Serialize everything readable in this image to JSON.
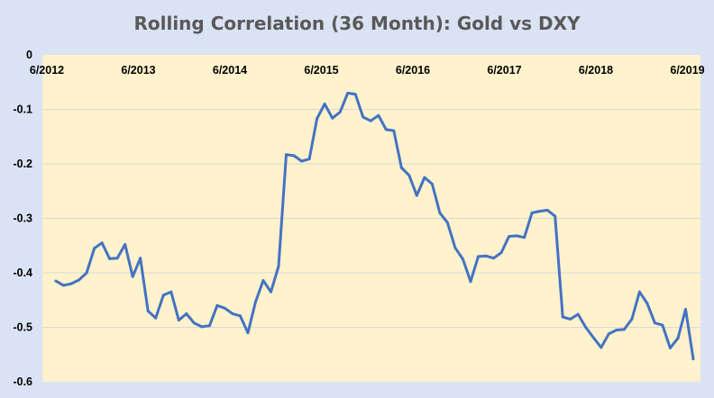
{
  "chart_data": {
    "type": "line",
    "title": "Rolling Correlation (36 Month): Gold vs DXY",
    "xlabel": "",
    "ylabel": "",
    "ylim": [
      -0.6,
      0
    ],
    "yticks": [
      "0",
      "-0.1",
      "-0.2",
      "-0.3",
      "-0.4",
      "-0.5",
      "-0.6"
    ],
    "xticks": [
      "6/2012",
      "6/2013",
      "6/2014",
      "6/2015",
      "6/2016",
      "6/2017",
      "6/2018",
      "6/2019"
    ],
    "grid": true,
    "legend": "none",
    "colors": {
      "line": "#4472c4",
      "plot_bg": "#fff2cc",
      "page_bg": "#dae3f3",
      "grid": "#d9d9d9"
    },
    "series": [
      {
        "values": [
          -0.415,
          -0.423,
          -0.42,
          -0.413,
          -0.4,
          -0.355,
          -0.345,
          -0.374,
          -0.373,
          -0.348,
          -0.407,
          -0.373,
          -0.47,
          -0.483,
          -0.441,
          -0.435,
          -0.487,
          -0.475,
          -0.492,
          -0.499,
          -0.497,
          -0.46,
          -0.465,
          -0.475,
          -0.479,
          -0.51,
          -0.453,
          -0.414,
          -0.435,
          -0.388,
          -0.183,
          -0.185,
          -0.195,
          -0.191,
          -0.117,
          -0.09,
          -0.116,
          -0.105,
          -0.07,
          -0.072,
          -0.114,
          -0.121,
          -0.111,
          -0.137,
          -0.139,
          -0.207,
          -0.221,
          -0.258,
          -0.225,
          -0.237,
          -0.29,
          -0.308,
          -0.354,
          -0.375,
          -0.416,
          -0.37,
          -0.369,
          -0.373,
          -0.363,
          -0.333,
          -0.332,
          -0.335,
          -0.29,
          -0.287,
          -0.285,
          -0.296,
          -0.481,
          -0.485,
          -0.476,
          -0.5,
          -0.519,
          -0.537,
          -0.512,
          -0.505,
          -0.504,
          -0.485,
          -0.435,
          -0.456,
          -0.492,
          -0.496,
          -0.538,
          -0.52,
          -0.467,
          -0.558
        ]
      }
    ]
  }
}
